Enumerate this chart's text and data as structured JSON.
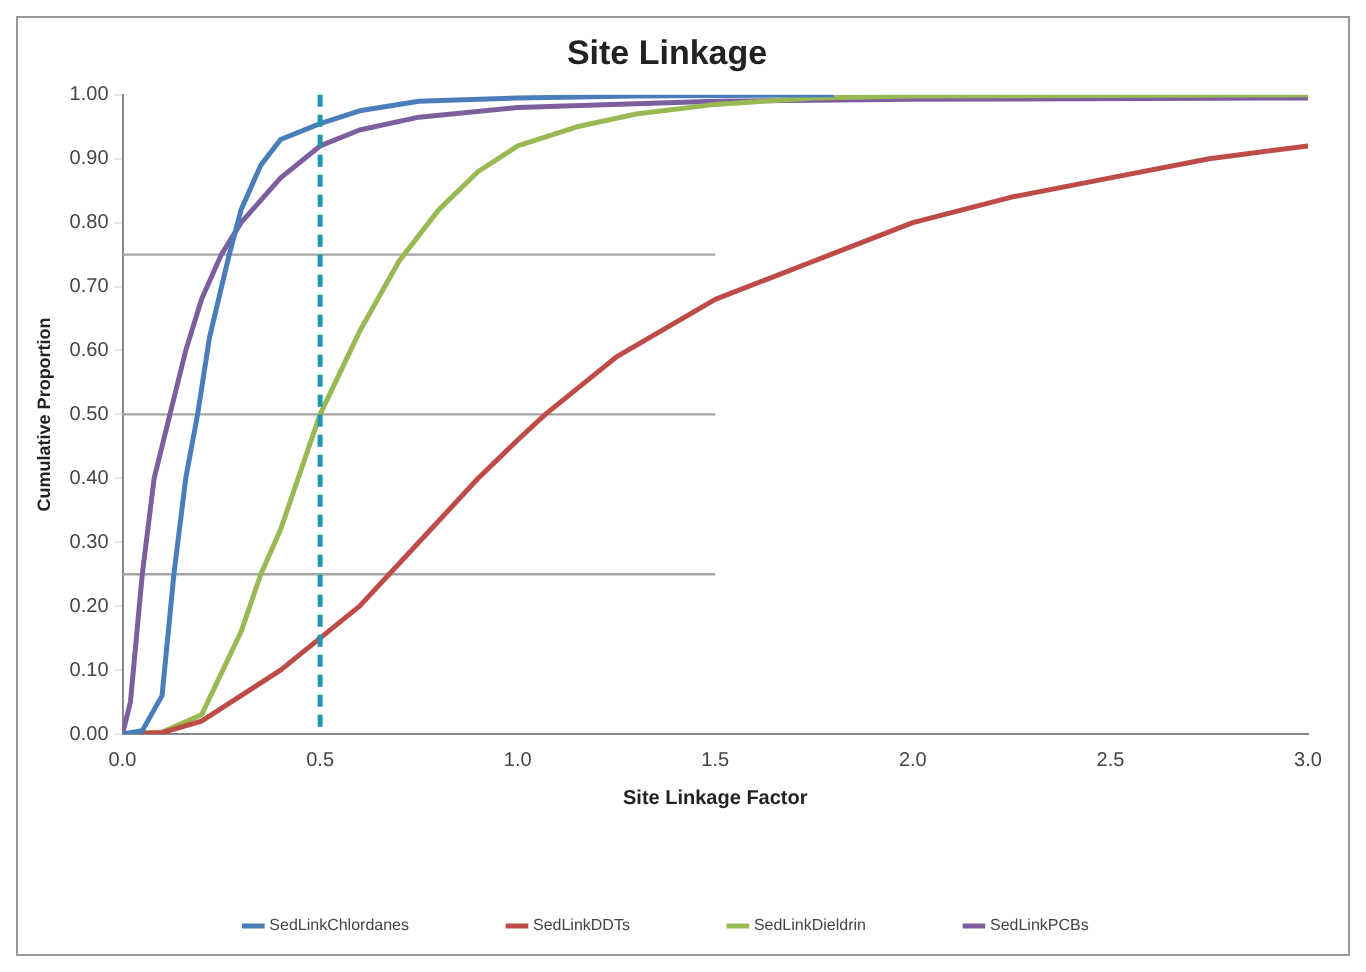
{
  "chart_data": {
    "type": "line",
    "title": "Site Linkage",
    "xlabel": "Site Linkage Factor",
    "ylabel": "Cumulative Proportion",
    "xlim": [
      0,
      3
    ],
    "ylim": [
      0,
      1
    ],
    "xticks": [
      {
        "value": 0,
        "label": "0.0"
      },
      {
        "value": 0.5,
        "label": "0.5"
      },
      {
        "value": 1,
        "label": "1.0"
      },
      {
        "value": 1.5,
        "label": "1.5"
      },
      {
        "value": 2,
        "label": "2.0"
      },
      {
        "value": 2.5,
        "label": "2.5"
      },
      {
        "value": 3,
        "label": "3.0"
      }
    ],
    "yticks": [
      {
        "value": 0,
        "label": "0.00"
      },
      {
        "value": 0.1,
        "label": "0.10"
      },
      {
        "value": 0.2,
        "label": "0.20"
      },
      {
        "value": 0.3,
        "label": "0.30"
      },
      {
        "value": 0.4,
        "label": "0.40"
      },
      {
        "value": 0.5,
        "label": "0.50"
      },
      {
        "value": 0.6,
        "label": "0.60"
      },
      {
        "value": 0.7,
        "label": "0.70"
      },
      {
        "value": 0.8,
        "label": "0.80"
      },
      {
        "value": 0.9,
        "label": "0.90"
      },
      {
        "value": 1,
        "label": "1.00"
      }
    ],
    "legend": "bottom",
    "marker": "none",
    "series": [
      {
        "name": "SedLinkChlordanes",
        "color": "#4a7ebb",
        "x": [
          0,
          0.05,
          0.1,
          0.13,
          0.16,
          0.19,
          0.22,
          0.27,
          0.3,
          0.35,
          0.4,
          0.5,
          0.6,
          0.75,
          1.0,
          1.3,
          1.8
        ],
        "values": [
          0,
          0.005,
          0.06,
          0.25,
          0.4,
          0.5,
          0.62,
          0.75,
          0.82,
          0.89,
          0.93,
          0.955,
          0.975,
          0.99,
          0.995,
          0.998,
          1.0
        ]
      },
      {
        "name": "SedLinkDDTs",
        "color": "#be4b48",
        "x": [
          0,
          0.1,
          0.2,
          0.3,
          0.4,
          0.5,
          0.6,
          0.75,
          0.9,
          1.0,
          1.07,
          1.25,
          1.5,
          1.75,
          2.0,
          2.25,
          2.5,
          2.75,
          3.0
        ],
        "values": [
          0,
          0.002,
          0.02,
          0.06,
          0.1,
          0.15,
          0.2,
          0.3,
          0.4,
          0.46,
          0.5,
          0.59,
          0.68,
          0.74,
          0.8,
          0.84,
          0.87,
          0.9,
          0.92
        ]
      },
      {
        "name": "SedLinkDieldrin",
        "color": "#98b954",
        "x": [
          0,
          0.1,
          0.2,
          0.3,
          0.35,
          0.4,
          0.5,
          0.6,
          0.7,
          0.8,
          0.9,
          1.0,
          1.15,
          1.3,
          1.5,
          1.75,
          2.0,
          3.0
        ],
        "values": [
          0,
          0.003,
          0.03,
          0.16,
          0.25,
          0.32,
          0.5,
          0.63,
          0.74,
          0.82,
          0.88,
          0.92,
          0.95,
          0.97,
          0.985,
          0.995,
          0.998,
          1.0
        ]
      },
      {
        "name": "SedLinkPCBs",
        "color": "#7d5fa0",
        "x": [
          0,
          0.02,
          0.05,
          0.08,
          0.12,
          0.16,
          0.2,
          0.25,
          0.3,
          0.4,
          0.5,
          0.6,
          0.75,
          1.0,
          1.5,
          2.0,
          3.0
        ],
        "values": [
          0,
          0.05,
          0.25,
          0.4,
          0.5,
          0.6,
          0.68,
          0.75,
          0.8,
          0.87,
          0.92,
          0.945,
          0.965,
          0.98,
          0.99,
          0.993,
          0.995
        ]
      },
      {
        "color": "#a6a6a6",
        "x": [
          0,
          1.5
        ],
        "values": [
          0.75,
          0.75
        ]
      },
      {
        "color": "#a6a6a6",
        "x": [
          0,
          1.5
        ],
        "values": [
          0.5,
          0.5
        ]
      },
      {
        "color": "#a6a6a6",
        "x": [
          0,
          1.5
        ],
        "values": [
          0.25,
          0.25
        ]
      }
    ],
    "ref_lines": [
      {
        "axis": "x",
        "value": 0.5,
        "color": "#1f96b0",
        "line_style": "dashed"
      }
    ]
  }
}
